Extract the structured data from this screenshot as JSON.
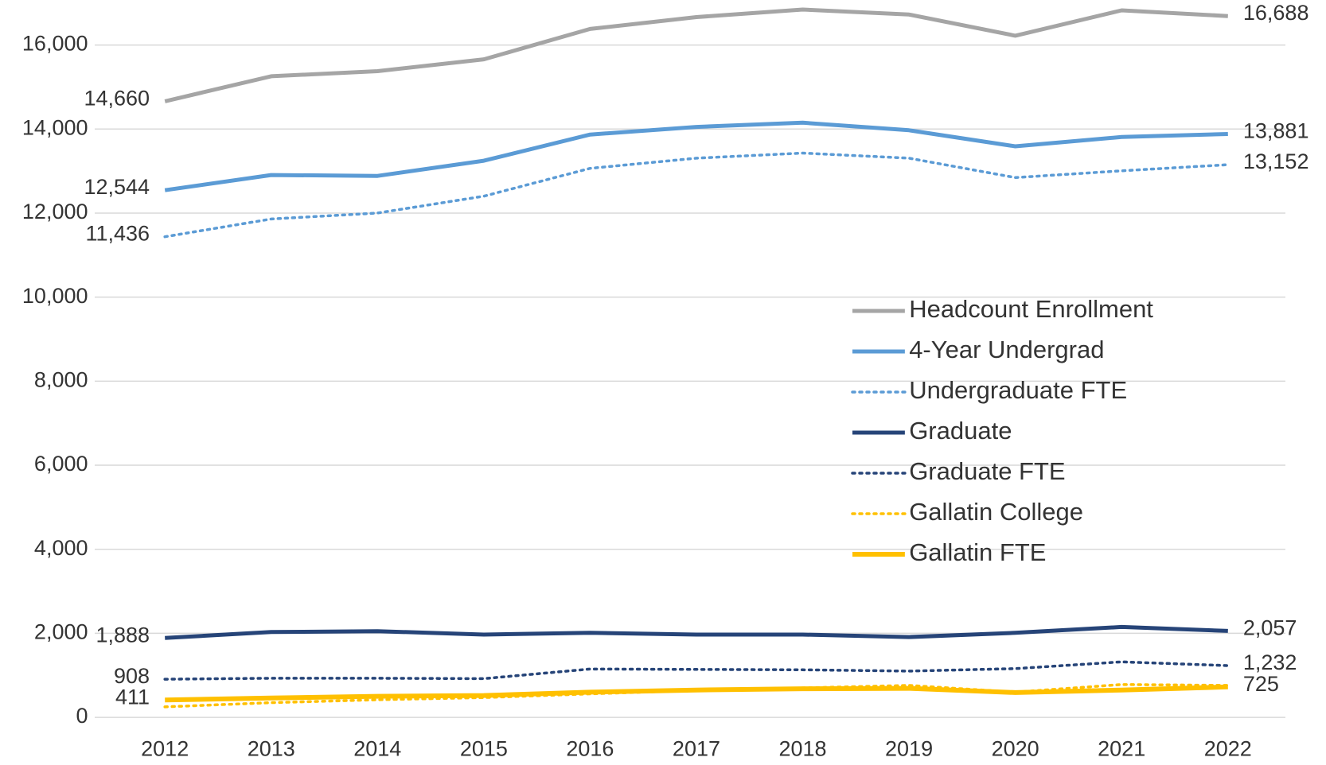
{
  "chart_data": {
    "type": "line",
    "categories": [
      "2012",
      "2013",
      "2014",
      "2015",
      "2016",
      "2017",
      "2018",
      "2019",
      "2020",
      "2021",
      "2022"
    ],
    "ylim": [
      0,
      17000
    ],
    "yticks": [
      0,
      {
        "value": 2000,
        "label": "2,000"
      },
      {
        "value": 4000,
        "label": "4,000"
      },
      {
        "value": 6000,
        "label": "6,000"
      },
      {
        "value": 8000,
        "label": "8,000"
      },
      {
        "value": 10000,
        "label": "10,000"
      },
      {
        "value": 12000,
        "label": "12,000"
      },
      {
        "value": 14000,
        "label": "14,000"
      },
      {
        "value": 16000,
        "label": "16,000"
      }
    ],
    "grid": true,
    "legend": "right",
    "series": [
      {
        "name": "Headcount Enrollment",
        "color": "#a5a5a5",
        "dash": "solid",
        "width": 5,
        "values": [
          14660,
          15256,
          15377,
          15658,
          16382,
          16663,
          16844,
          16724,
          16221,
          16824,
          16688
        ],
        "value_labels": [
          "14,660",
          null,
          null,
          null,
          null,
          null,
          null,
          null,
          null,
          null,
          "16,688"
        ]
      },
      {
        "name": "4-Year Undergrad",
        "color": "#5b9bd5",
        "dash": "solid",
        "width": 5,
        "values": [
          12544,
          12905,
          12884,
          13246,
          13869,
          14050,
          14151,
          13970,
          13588,
          13809,
          13881
        ],
        "value_labels": [
          "12,544",
          null,
          null,
          null,
          null,
          null,
          null,
          null,
          null,
          null,
          "13,881"
        ]
      },
      {
        "name": "Undergraduate FTE",
        "color": "#5b9bd5",
        "dash": "dotted",
        "width": 3.5,
        "values": [
          11436,
          11859,
          12000,
          12402,
          13065,
          13306,
          13427,
          13306,
          12844,
          13005,
          13152
        ],
        "value_labels": [
          "11,436",
          null,
          null,
          null,
          null,
          null,
          null,
          null,
          null,
          null,
          "13,152"
        ]
      },
      {
        "name": "Graduate",
        "color": "#264478",
        "dash": "solid",
        "width": 5,
        "values": [
          1888,
          2030,
          2050,
          1970,
          2010,
          1970,
          1970,
          1910,
          2010,
          2151,
          2057
        ],
        "value_labels": [
          "1,888",
          null,
          null,
          null,
          null,
          null,
          null,
          null,
          null,
          null,
          "2,057"
        ]
      },
      {
        "name": "Graduate FTE",
        "color": "#264478",
        "dash": "dotted",
        "width": 3.5,
        "values": [
          908,
          930,
          930,
          920,
          1150,
          1140,
          1130,
          1100,
          1160,
          1320,
          1232
        ],
        "value_labels": [
          "908",
          null,
          null,
          null,
          null,
          null,
          null,
          null,
          null,
          null,
          "1,232"
        ]
      },
      {
        "name": "Gallatin College",
        "color": "#ffc000",
        "dash": "dotted",
        "width": 3.5,
        "values": [
          250,
          350,
          420,
          470,
          560,
          640,
          700,
          760,
          600,
          780,
          760
        ]
      },
      {
        "name": "Gallatin FTE",
        "color": "#ffc000",
        "dash": "solid",
        "width": 6,
        "values": [
          411,
          460,
          500,
          520,
          600,
          650,
          680,
          690,
          590,
          650,
          725
        ],
        "value_labels": [
          "411",
          null,
          null,
          null,
          null,
          null,
          null,
          null,
          null,
          null,
          "725"
        ]
      }
    ]
  }
}
